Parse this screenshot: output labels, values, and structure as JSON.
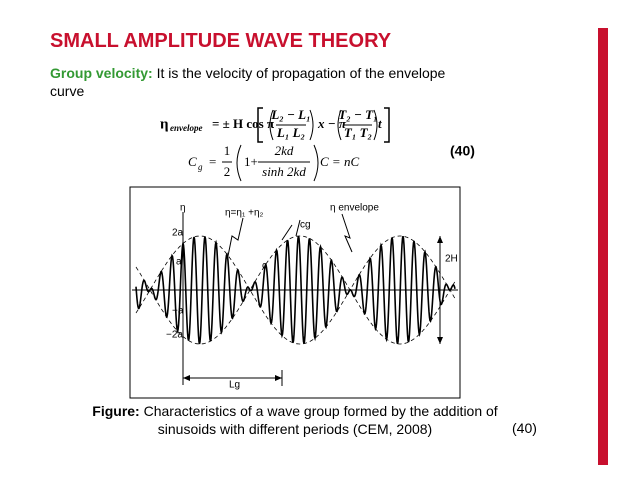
{
  "title": "SMALL AMPLITUDE WAVE THEORY",
  "intro": {
    "label": "Group velocity:",
    "text": "It is the velocity of propagation of the envelope curve"
  },
  "equation_1": {
    "lhs": "η",
    "lhs_sub": "envelope",
    "middle": "= ± H cos π",
    "num1": "L₂ − L₁",
    "den1": "L₁ L₂",
    "between": "x − π",
    "num2": "T₂ − T₁",
    "den2": "T₁ T₂",
    "end": "t"
  },
  "equation_2": {
    "lhs": "C",
    "lhs_sub": "g",
    "eq": "=",
    "num": "1",
    "den": "2",
    "one_plus": "1+",
    "frac_num": "2kd",
    "frac_den": "sinh 2kd",
    "rhs": "C = nC",
    "number": "(40)"
  },
  "figure": {
    "labels": [
      "η",
      "η=η₁ +η₂",
      "cg",
      "η envelope",
      "2a",
      "a",
      "−a",
      "−2a",
      "c",
      "2H",
      "Lg"
    ]
  },
  "caption": {
    "label": "Figure:",
    "text": "Characteristics of a wave group formed by the addition of sinusoids with different periods (CEM, 2008)",
    "number": "(40)"
  }
}
